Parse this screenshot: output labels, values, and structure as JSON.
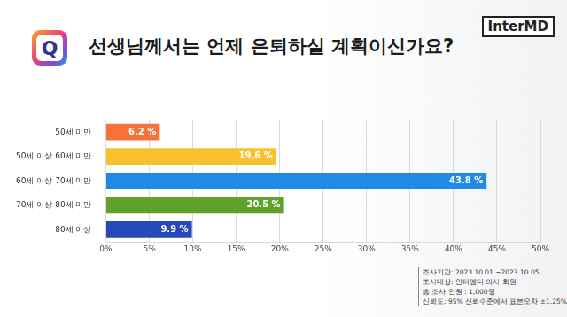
{
  "header": {
    "badge": "Q",
    "logo": "InterMD"
  },
  "chart_data": {
    "type": "bar",
    "orientation": "horizontal",
    "title": "선생님께서는 언제 은퇴하실 계획이신가요?",
    "categories": [
      "50세 미만",
      "50세 이상 60세 미만",
      "60세 이상 70세 미만",
      "70세 이상 80세 미만",
      "80세 이상"
    ],
    "values": [
      6.2,
      19.6,
      43.8,
      20.5,
      9.9
    ],
    "value_labels": [
      "6.2 %",
      "19.6 %",
      "43.8 %",
      "20.5 %",
      "9.9 %"
    ],
    "colors": [
      "#f4733c",
      "#f8c12d",
      "#1f8be6",
      "#5fa22a",
      "#2748b9"
    ],
    "xlim": [
      0,
      50
    ],
    "xticks": [
      {
        "value": 0,
        "label": "0%"
      },
      {
        "value": 5,
        "label": "5%"
      },
      {
        "value": 10,
        "label": "10%"
      },
      {
        "value": 15,
        "label": "15%"
      },
      {
        "value": 20,
        "label": "20%"
      },
      {
        "value": 25,
        "label": "25%"
      },
      {
        "value": 30,
        "label": "30%"
      },
      {
        "value": 35,
        "label": "35%"
      },
      {
        "value": 40,
        "label": "40%"
      },
      {
        "value": 45,
        "label": "45%"
      },
      {
        "value": 50,
        "label": "50%"
      }
    ],
    "grid": true,
    "data_labels": true,
    "annotations": [
      "조사기간: 2023.10.01 ~2023.10.05",
      "조사대상: 인터엠디 의사 회원",
      "총 조사 인원 : 1,000명",
      "신뢰도: 95% 신뢰수준에서 표본오차 ±1.25%"
    ]
  }
}
